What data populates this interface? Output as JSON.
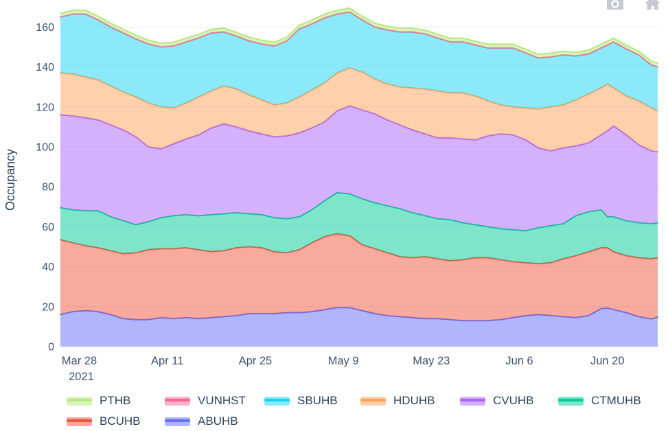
{
  "chart_data": {
    "type": "area",
    "stacked": true,
    "title": "",
    "ylabel": "Occupancy",
    "xlabel": "",
    "grid": true,
    "fill_opacity": 0.5,
    "ylim": [
      0,
      170
    ],
    "yticks": [
      0,
      20,
      40,
      60,
      80,
      100,
      120,
      140,
      160
    ],
    "xticks": [
      {
        "day": 3,
        "label": "Mar 28",
        "sublabel": "2021"
      },
      {
        "day": 17,
        "label": "Apr 11",
        "sublabel": ""
      },
      {
        "day": 31,
        "label": "Apr 25",
        "sublabel": ""
      },
      {
        "day": 45,
        "label": "May 9",
        "sublabel": ""
      },
      {
        "day": 59,
        "label": "May 23",
        "sublabel": ""
      },
      {
        "day": 73,
        "label": "Jun 6",
        "sublabel": ""
      },
      {
        "day": 87,
        "label": "Jun 20",
        "sublabel": ""
      }
    ],
    "x_days": [
      0,
      2,
      4,
      6,
      8,
      10,
      12,
      14,
      16,
      18,
      20,
      22,
      24,
      26,
      28,
      30,
      32,
      34,
      36,
      38,
      40,
      42,
      44,
      46,
      48,
      50,
      52,
      54,
      56,
      58,
      60,
      62,
      64,
      66,
      68,
      70,
      72,
      74,
      76,
      78,
      80,
      82,
      84,
      86,
      87,
      88,
      90,
      92,
      94,
      95
    ],
    "x_day_span": [
      0,
      95
    ],
    "series": [
      {
        "name": "ABUHB",
        "color": "#636EFA",
        "values": [
          16,
          17.5,
          18,
          17.5,
          16,
          14,
          13.5,
          13.5,
          14.5,
          14,
          14.5,
          14,
          14.5,
          15,
          15.5,
          16.5,
          16.5,
          16.5,
          17,
          17,
          17.5,
          18.5,
          19.5,
          19.5,
          18,
          16.5,
          15.5,
          15,
          14.5,
          14,
          14,
          13.5,
          13,
          13,
          13,
          13.5,
          14.5,
          15.5,
          16,
          15.5,
          15,
          14.5,
          15.5,
          19,
          19.3,
          18.5,
          17,
          15,
          13.8,
          14.8
        ]
      },
      {
        "name": "BCUHB",
        "color": "#EF553B",
        "values": [
          37.5,
          34.5,
          32.5,
          32,
          32,
          32.5,
          33.5,
          35,
          34.5,
          35,
          35,
          34.5,
          33,
          33,
          34,
          33.5,
          33,
          31,
          30,
          31.5,
          34.5,
          36.5,
          37,
          36,
          33,
          32.5,
          31.5,
          30,
          30,
          31,
          30,
          29.5,
          30.5,
          31.5,
          31.5,
          30,
          28,
          26.5,
          25.5,
          26.5,
          29,
          31,
          32,
          30.5,
          30.2,
          29,
          28.5,
          29.5,
          30.2,
          29.7
        ]
      },
      {
        "name": "CTMUHB",
        "color": "#00CC96",
        "values": [
          16,
          16.5,
          17.5,
          18.5,
          17,
          16.5,
          14,
          14,
          15.5,
          16.5,
          16.5,
          17,
          18.5,
          18.5,
          17.5,
          16.5,
          16.5,
          17,
          17,
          16.5,
          16.5,
          18,
          20.5,
          21,
          23,
          23,
          23.5,
          24,
          22.5,
          20.5,
          20,
          20.5,
          18.5,
          16.5,
          15.5,
          15.5,
          16,
          16,
          18,
          18.5,
          17.5,
          20,
          20,
          19,
          15.5,
          17.5,
          17.5,
          17.5,
          17.5,
          17.5
        ]
      },
      {
        "name": "CVUHB",
        "color": "#AB63FA",
        "values": [
          46.5,
          47,
          46.5,
          45.5,
          46,
          45.5,
          44,
          37.5,
          34.5,
          36,
          38,
          40.5,
          43.5,
          45,
          43,
          41.5,
          40.5,
          40.5,
          41.5,
          42,
          41,
          39.5,
          41,
          44,
          44.5,
          44.5,
          43,
          42,
          41.5,
          41,
          40.5,
          41,
          42,
          42.5,
          45.5,
          47.5,
          47.5,
          45.5,
          40,
          37.5,
          38,
          35,
          34.5,
          37.5,
          43,
          45.5,
          43,
          39,
          36.5,
          35.5
        ]
      },
      {
        "name": "HDUHB",
        "color": "#FFA15A",
        "values": [
          21,
          21,
          20.5,
          20,
          19.5,
          19,
          20,
          22,
          21,
          18,
          18,
          19,
          18.5,
          19,
          19,
          18,
          17,
          16,
          16.5,
          18,
          19,
          19.5,
          19,
          19,
          19,
          17.5,
          18,
          19,
          21,
          22.5,
          23.5,
          22.5,
          23,
          22,
          17.5,
          14.5,
          14,
          16,
          19.5,
          22,
          21.5,
          23,
          24.5,
          23.5,
          23.5,
          19,
          19.5,
          22,
          21.5,
          20.5
        ]
      },
      {
        "name": "SBUHB",
        "color": "#19D3F3",
        "values": [
          28,
          30,
          31.5,
          30,
          29.5,
          29.5,
          29,
          29.5,
          30,
          31,
          30.5,
          29.5,
          29,
          27,
          26.5,
          27,
          28,
          29.5,
          31,
          34,
          33,
          32.5,
          29.5,
          28,
          26,
          26,
          27,
          27.5,
          28,
          27.5,
          26.5,
          25.5,
          25.5,
          25.5,
          26.5,
          28.5,
          29.5,
          27.5,
          25.5,
          25,
          25,
          22,
          20,
          20,
          19.5,
          23,
          23.5,
          23,
          21.5,
          22
        ]
      },
      {
        "name": "VUNHST",
        "color": "#FF6692",
        "values": [
          0.1,
          0.1,
          0.1,
          0.1,
          0.1,
          0.1,
          0.1,
          0.1,
          0.1,
          0.1,
          0.1,
          0.1,
          0.1,
          0.1,
          0.1,
          0.1,
          0.1,
          0.1,
          0.1,
          0.1,
          0.1,
          0.1,
          0.1,
          0.1,
          0.1,
          0.1,
          0.1,
          0.1,
          0.1,
          0.1,
          0.1,
          0.1,
          0.1,
          0.1,
          0.1,
          0.1,
          0.1,
          0.1,
          0.1,
          0.1,
          0.1,
          0.1,
          0.1,
          0.1,
          0.1,
          0.1,
          0.1,
          0.1,
          0.1,
          0.1
        ]
      },
      {
        "name": "PTHB",
        "color": "#B6E880",
        "values": [
          1.8,
          1.8,
          1.8,
          1.8,
          1.8,
          1.8,
          1.8,
          1.8,
          1.8,
          1.8,
          1.8,
          1.8,
          1.8,
          1.8,
          1.8,
          1.8,
          1.8,
          1.8,
          1.8,
          1.8,
          1.8,
          1.8,
          1.8,
          1.8,
          1.8,
          1.8,
          1.8,
          1.8,
          1.8,
          1.8,
          1.8,
          1.8,
          1.8,
          1.8,
          1.8,
          1.8,
          1.8,
          1.8,
          1.8,
          1.8,
          1.8,
          1.8,
          1.8,
          1.8,
          1.8,
          1.8,
          1.8,
          1.8,
          1.8,
          1.8
        ]
      }
    ],
    "legend_order": [
      "PTHB",
      "VUNHST",
      "SBUHB",
      "HDUHB",
      "CVUHB",
      "CTMUHB",
      "BCUHB",
      "ABUHB"
    ],
    "legend_position": "bottom"
  },
  "style": {
    "text_color": "#2a3f5f",
    "tick_color": "#3d5270",
    "grid_color": "#e7ecf5",
    "modebar_icon_color": "#c7c9d0",
    "background": "#ffffff"
  },
  "modebar": {
    "camera_tooltip": "Download plot",
    "home_tooltip": "Reset axes"
  }
}
